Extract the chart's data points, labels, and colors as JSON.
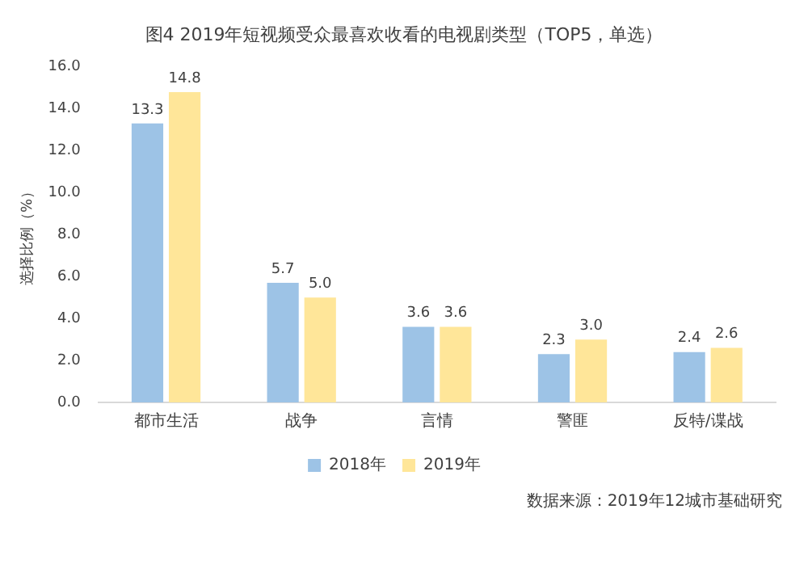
{
  "chart_data": {
    "type": "bar",
    "title": "图4  2019年短视频受众最喜欢收看的电视剧类型（TOP5，单选）",
    "ylabel": "选择比例（%）",
    "categories": [
      "都市生活",
      "战争",
      "言情",
      "警匪",
      "反特/谍战"
    ],
    "series": [
      {
        "name": "2018年",
        "color": "#9dc3e6",
        "values": [
          13.3,
          5.7,
          3.6,
          2.3,
          2.4
        ],
        "value_labels": [
          "13.3",
          "5.7",
          "3.6",
          "2.3",
          "2.4"
        ]
      },
      {
        "name": "2019年",
        "color": "#ffe699",
        "values": [
          14.8,
          5.0,
          3.6,
          3.0,
          2.6
        ],
        "value_labels": [
          "14.8",
          "5.0",
          "3.6",
          "3.0",
          "2.6"
        ]
      }
    ],
    "ylim": [
      0,
      16
    ],
    "yticks": [
      {
        "value": 0,
        "label": "0.0"
      },
      {
        "value": 2,
        "label": "2.0"
      },
      {
        "value": 4,
        "label": "4.0"
      },
      {
        "value": 6,
        "label": "6.0"
      },
      {
        "value": 8,
        "label": "8.0"
      },
      {
        "value": 10,
        "label": "10.0"
      },
      {
        "value": 12,
        "label": "12.0"
      },
      {
        "value": 14,
        "label": "14.0"
      },
      {
        "value": 16,
        "label": "16.0"
      }
    ],
    "grid": false,
    "legend": "bottom",
    "annotations": [
      "数据来源：2019年12城市基础研究"
    ]
  }
}
